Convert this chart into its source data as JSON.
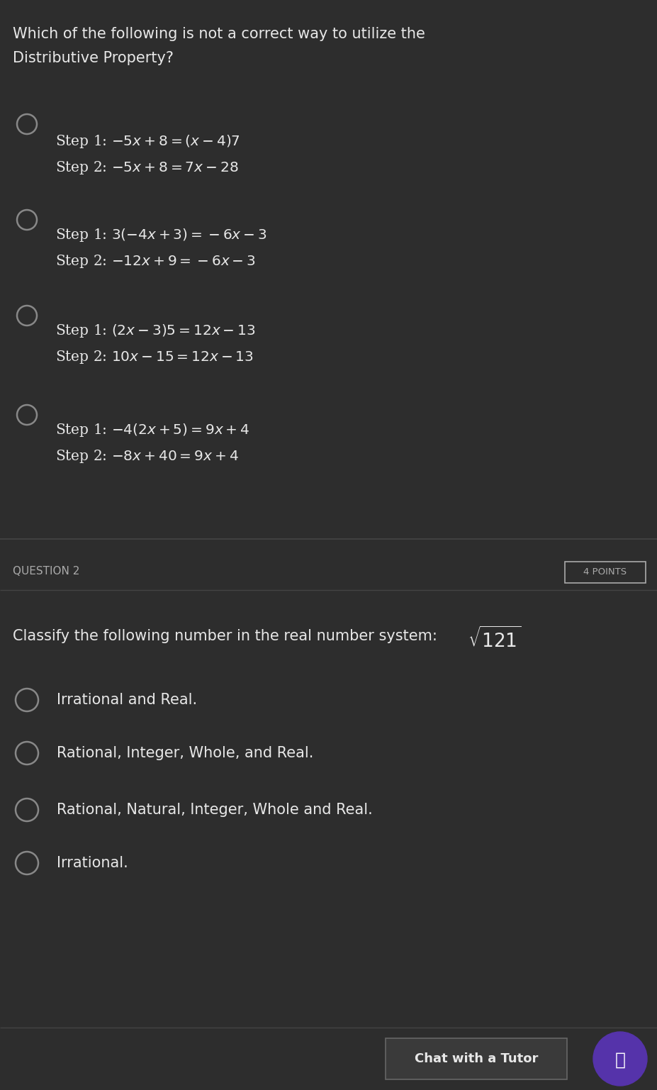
{
  "bg_color": "#2d2d2d",
  "text_color": "#e8e8e8",
  "dim_text_color": "#aaaaaa",
  "circle_color": "#888888",
  "separator_color": "#555555",
  "button_bg": "#3a3a3a",
  "purple_color": "#5533aa",
  "fig_width": 9.27,
  "fig_height": 15.37,
  "q1_title_line1": "Which of the following is not a correct way to utilize the",
  "q1_title_line2": "Distributive Property?",
  "options_q1": [
    {
      "step1": "Step 1: $-5x + 8 = (x - 4)7$",
      "step2": "Step 2: $-5x + 8 = 7x - 28$"
    },
    {
      "step1": "Step 1: $3(-4x + 3) = -6x - 3$",
      "step2": "Step 2: $-12x + 9 = -6x - 3$"
    },
    {
      "step1": "Step 1: $(2x - 3)5 = 12x - 13$",
      "step2": "Step 2: $10x - 15 = 12x - 13$"
    },
    {
      "step1": "Step 1: $-4(2x + 5) = 9x + 4$",
      "step2": "Step 2: $-8x + 40 = 9x + 4$"
    }
  ],
  "q2_label": "QUESTION 2",
  "q2_points": "4 POINTS",
  "q2_prompt_plain": "Classify the following number in the real number system: ",
  "q2_sqrt": "$\\sqrt{121}$",
  "options_q2": [
    "Irrational and Real.",
    "Rational, Integer, Whole, and Real.",
    "Rational, Natural, Integer, Whole and Real.",
    "Irrational."
  ],
  "chat_button_text": "Chat with a Tutor"
}
